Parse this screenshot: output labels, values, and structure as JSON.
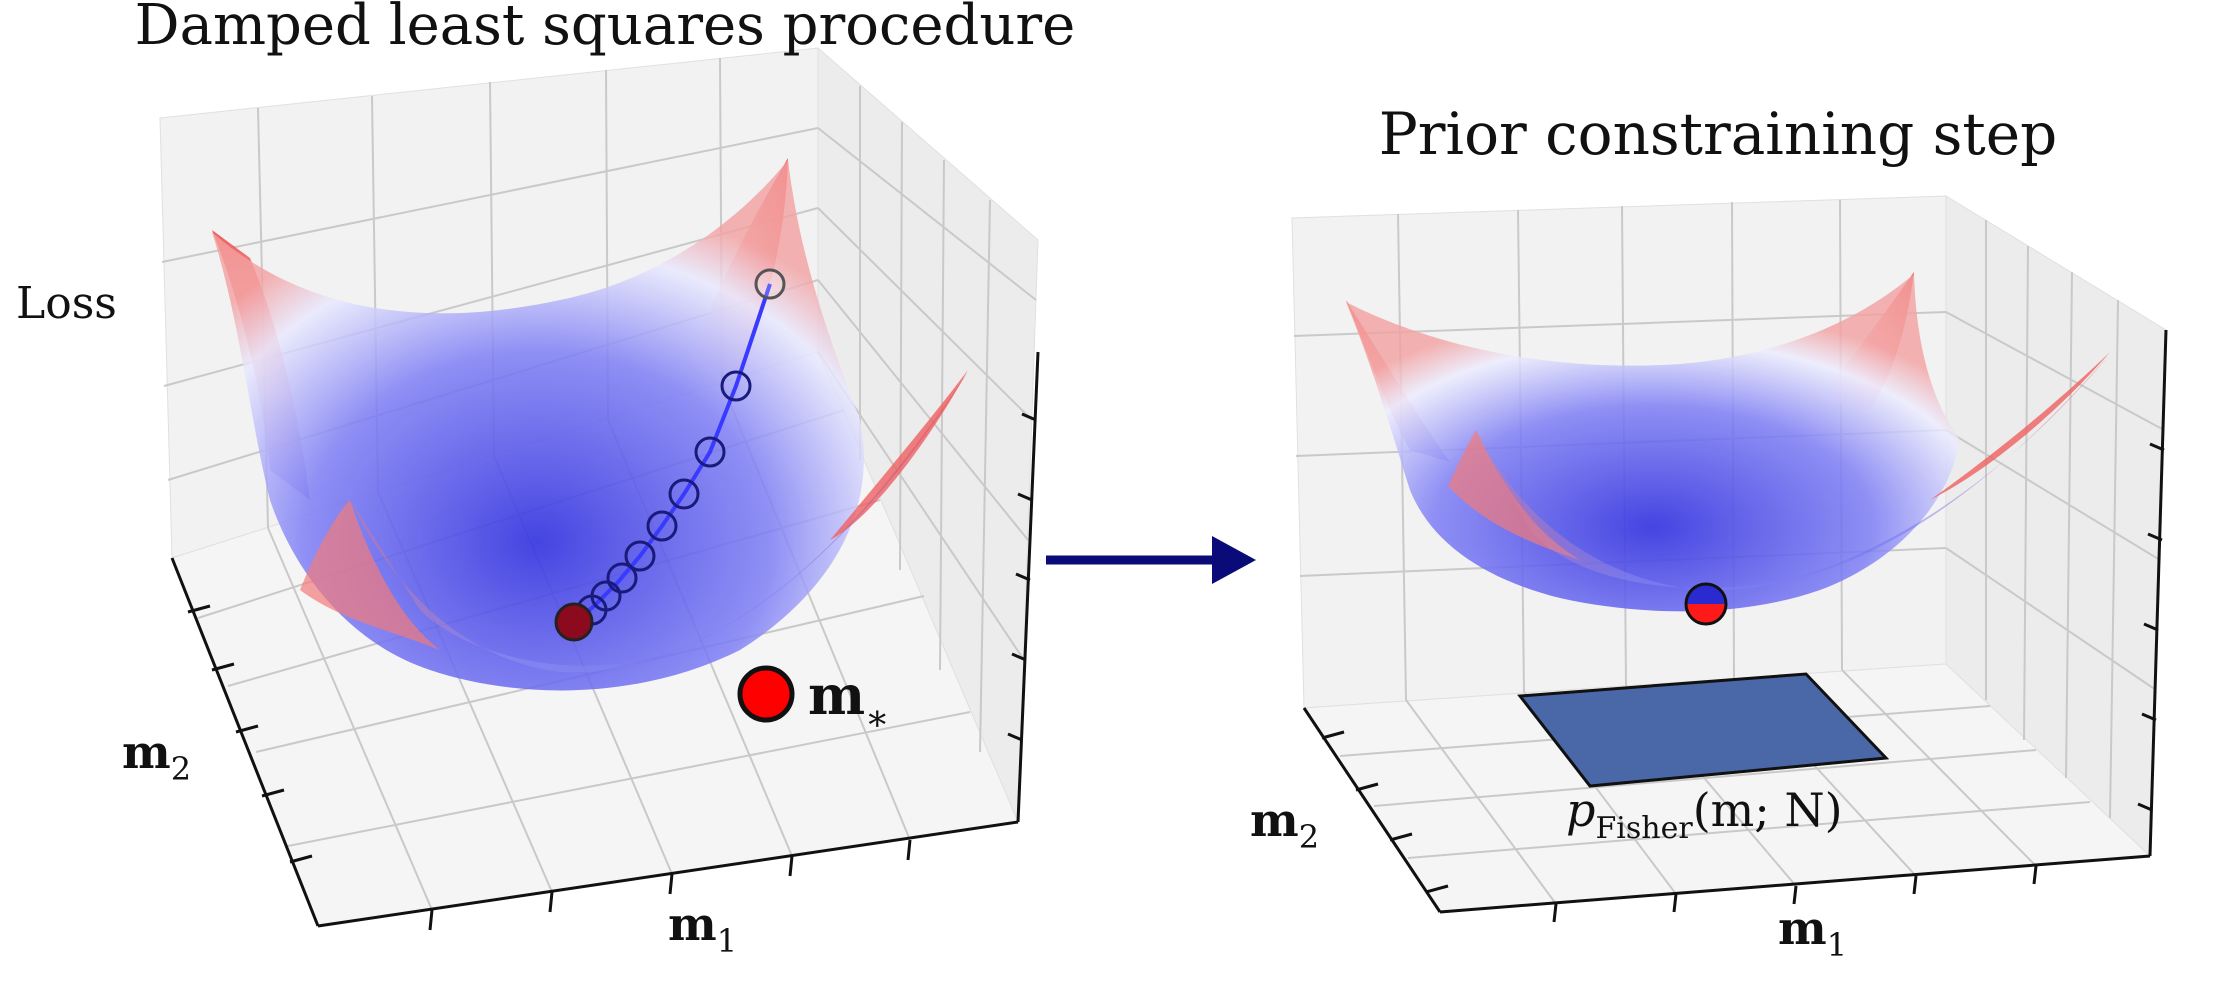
{
  "left_panel": {
    "title": "Damped least squares procedure",
    "z_label": "Loss",
    "x_label": "m",
    "x_label_sub": "1",
    "y_label": "m",
    "y_label_sub": "2",
    "minimum_label": "m",
    "minimum_label_sub": "∗"
  },
  "right_panel": {
    "title": "Prior constraining step",
    "x_label": "m",
    "x_label_sub": "1",
    "y_label": "m",
    "y_label_sub": "2",
    "prior_label_p": "p",
    "prior_label_sub": "Fisher",
    "prior_label_args": "(m; N)"
  },
  "colors": {
    "surface_low": "#3a3af0",
    "surface_high": "#f05050",
    "path": "#3a3aff",
    "minimum_marker": "#ff0000",
    "arrow": "#0a0a78",
    "prior_plane": "#4a68a8"
  }
}
